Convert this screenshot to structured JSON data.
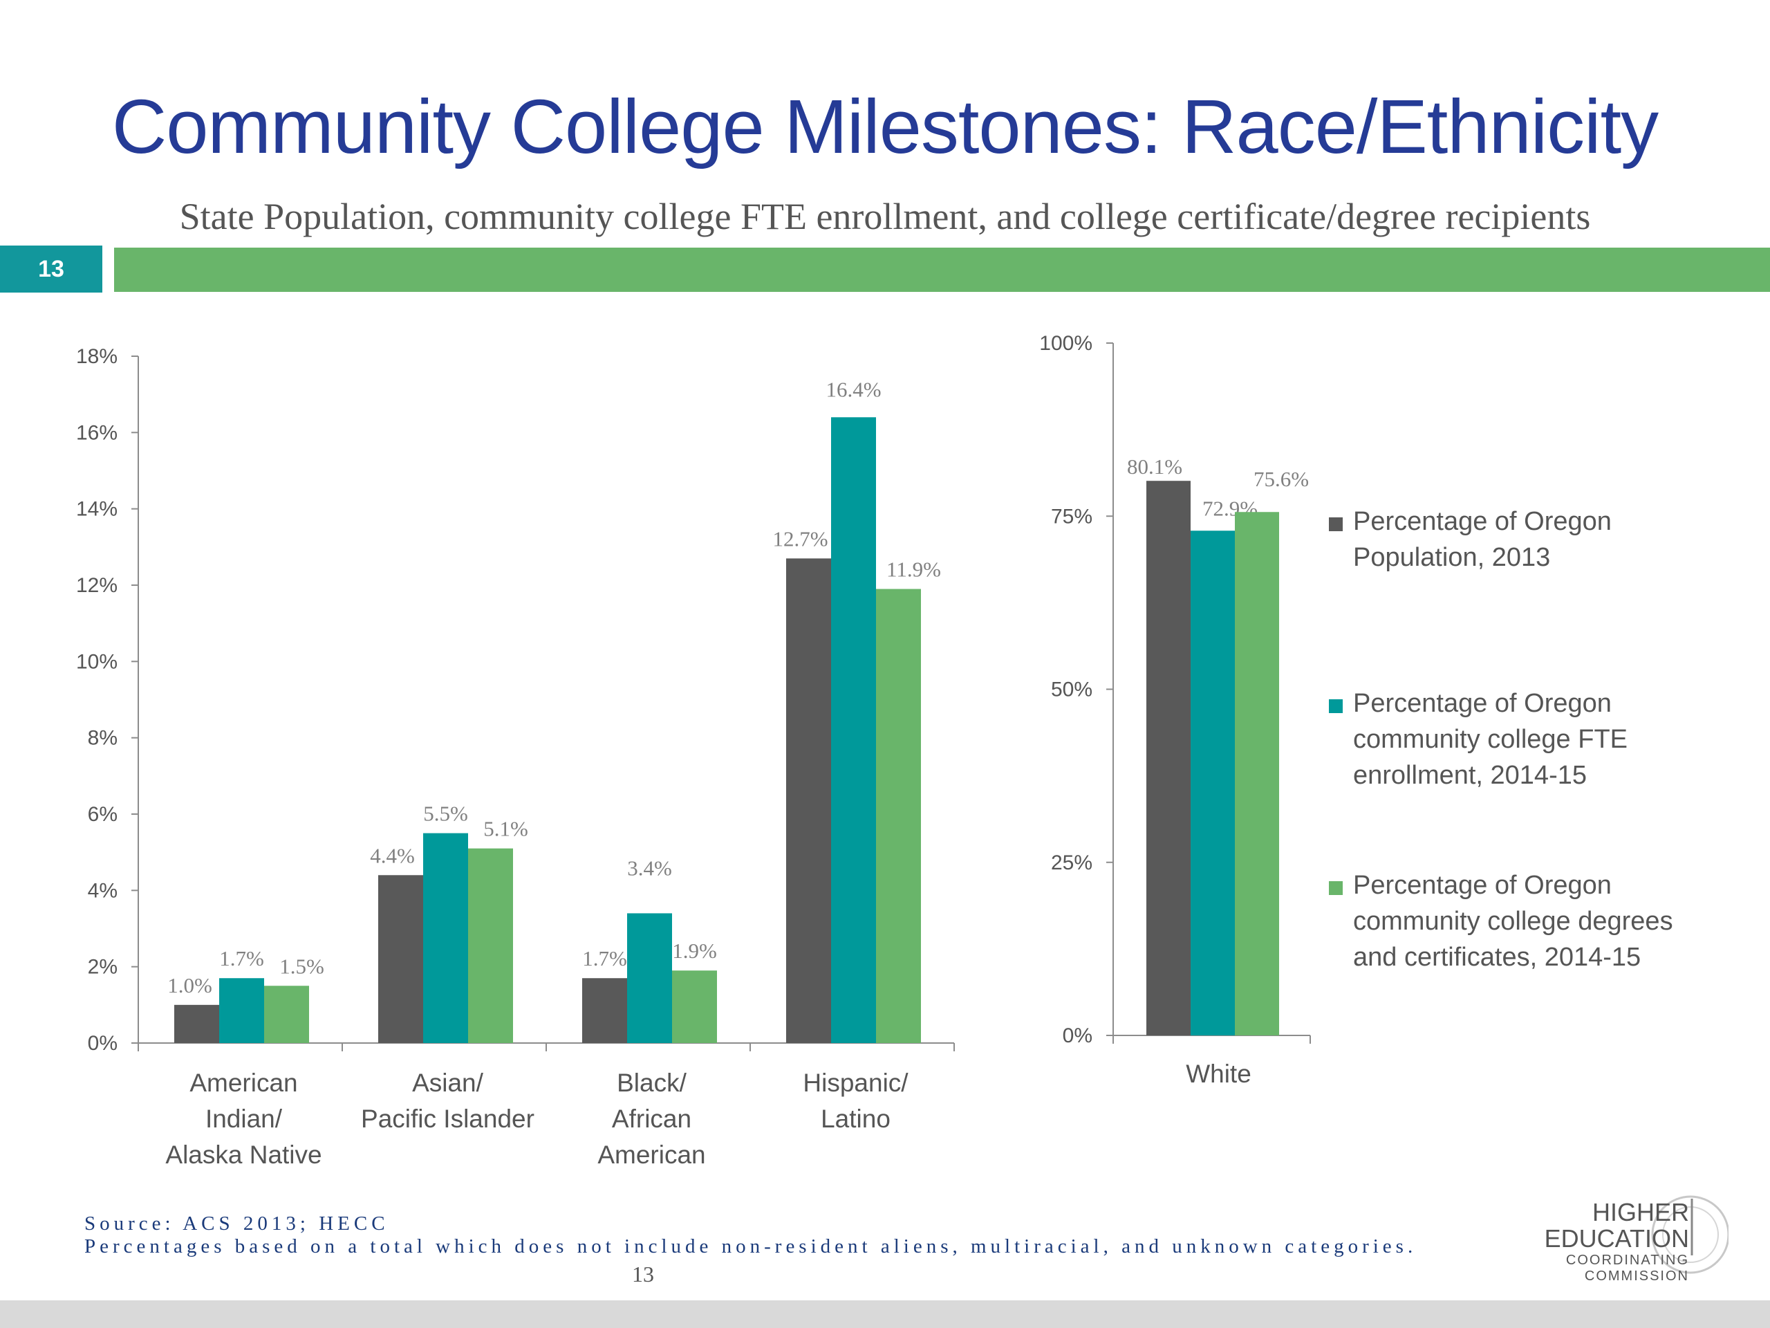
{
  "slide": {
    "title": "Community College Milestones: Race/Ethnicity",
    "subtitle": "State Population, community college FTE enrollment, and college certificate/degree recipients",
    "slide_number": "13",
    "source_line1": "Source: ACS 2013; HECC",
    "source_line2": "Percentages  based on a total which does not include non-resident aliens, multiracial, and unknown categories.",
    "page_number": "13",
    "logo": {
      "line1": "HIGHER",
      "line2": "EDUCATION",
      "line3": "COORDINATING",
      "line4": "COMMISSION"
    }
  },
  "colors": {
    "title": "#253b96",
    "accent_teal": "#12979c",
    "accent_green": "#69b56a",
    "series_population": "#595959",
    "series_enrollment": "#00999a",
    "series_degrees": "#69b56a"
  },
  "chart_data": [
    {
      "type": "bar",
      "categories": [
        "American Indian/ Alaska Native",
        "Asian/ Pacific Islander",
        "Black/ African American",
        "Hispanic/ Latino"
      ],
      "category_lines": [
        [
          "American",
          "Indian/",
          "Alaska Native"
        ],
        [
          "Asian/",
          "Pacific Islander"
        ],
        [
          "Black/",
          "African",
          "American"
        ],
        [
          "Hispanic/",
          "Latino"
        ]
      ],
      "series": [
        {
          "name": "Percentage of Oregon Population, 2013",
          "values": [
            1.0,
            4.4,
            1.7,
            12.7
          ],
          "labels": [
            "1.0%",
            "4.4%",
            "1.7%",
            "12.7%"
          ]
        },
        {
          "name": "Percentage of Oregon community college FTE enrollment, 2014-15",
          "values": [
            1.7,
            5.5,
            3.4,
            16.4
          ],
          "labels": [
            "1.7%",
            "5.5%",
            "3.4%",
            "16.4%"
          ]
        },
        {
          "name": "Percentage of Oregon community college degrees and certificates, 2014-15",
          "values": [
            1.5,
            5.1,
            1.9,
            11.9
          ],
          "labels": [
            "1.5%",
            "5.1%",
            "1.9%",
            "11.9%"
          ]
        }
      ],
      "ylim": [
        0,
        18
      ],
      "yticks": [
        0,
        2,
        4,
        6,
        8,
        10,
        12,
        14,
        16,
        18
      ],
      "ytick_labels": [
        "0%",
        "2%",
        "4%",
        "6%",
        "8%",
        "10%",
        "12%",
        "14%",
        "16%",
        "18%"
      ],
      "grid": false
    },
    {
      "type": "bar",
      "categories": [
        "White"
      ],
      "series": [
        {
          "name": "Percentage of Oregon Population, 2013",
          "values": [
            80.1
          ],
          "labels": [
            "80.1%"
          ]
        },
        {
          "name": "Percentage of Oregon community college FTE enrollment, 2014-15",
          "values": [
            72.9
          ],
          "labels": [
            "72.9%"
          ]
        },
        {
          "name": "Percentage of Oregon community college degrees and certificates, 2014-15",
          "values": [
            75.6
          ],
          "labels": [
            "75.6%"
          ]
        }
      ],
      "ylim": [
        0,
        100
      ],
      "yticks": [
        0,
        25,
        50,
        75,
        100
      ],
      "ytick_labels": [
        "0%",
        "25%",
        "50%",
        "75%",
        "100%"
      ],
      "grid": false,
      "legend": {
        "placement": "right",
        "entries": [
          {
            "line1": "Percentage of Oregon",
            "rest": "Population, 2013"
          },
          {
            "line1": "Percentage of Oregon",
            "rest": "community college FTE\nenrollment, 2014-15"
          },
          {
            "line1": "Percentage of Oregon",
            "rest": "community college degrees\nand certificates, 2014-15"
          }
        ]
      }
    }
  ]
}
